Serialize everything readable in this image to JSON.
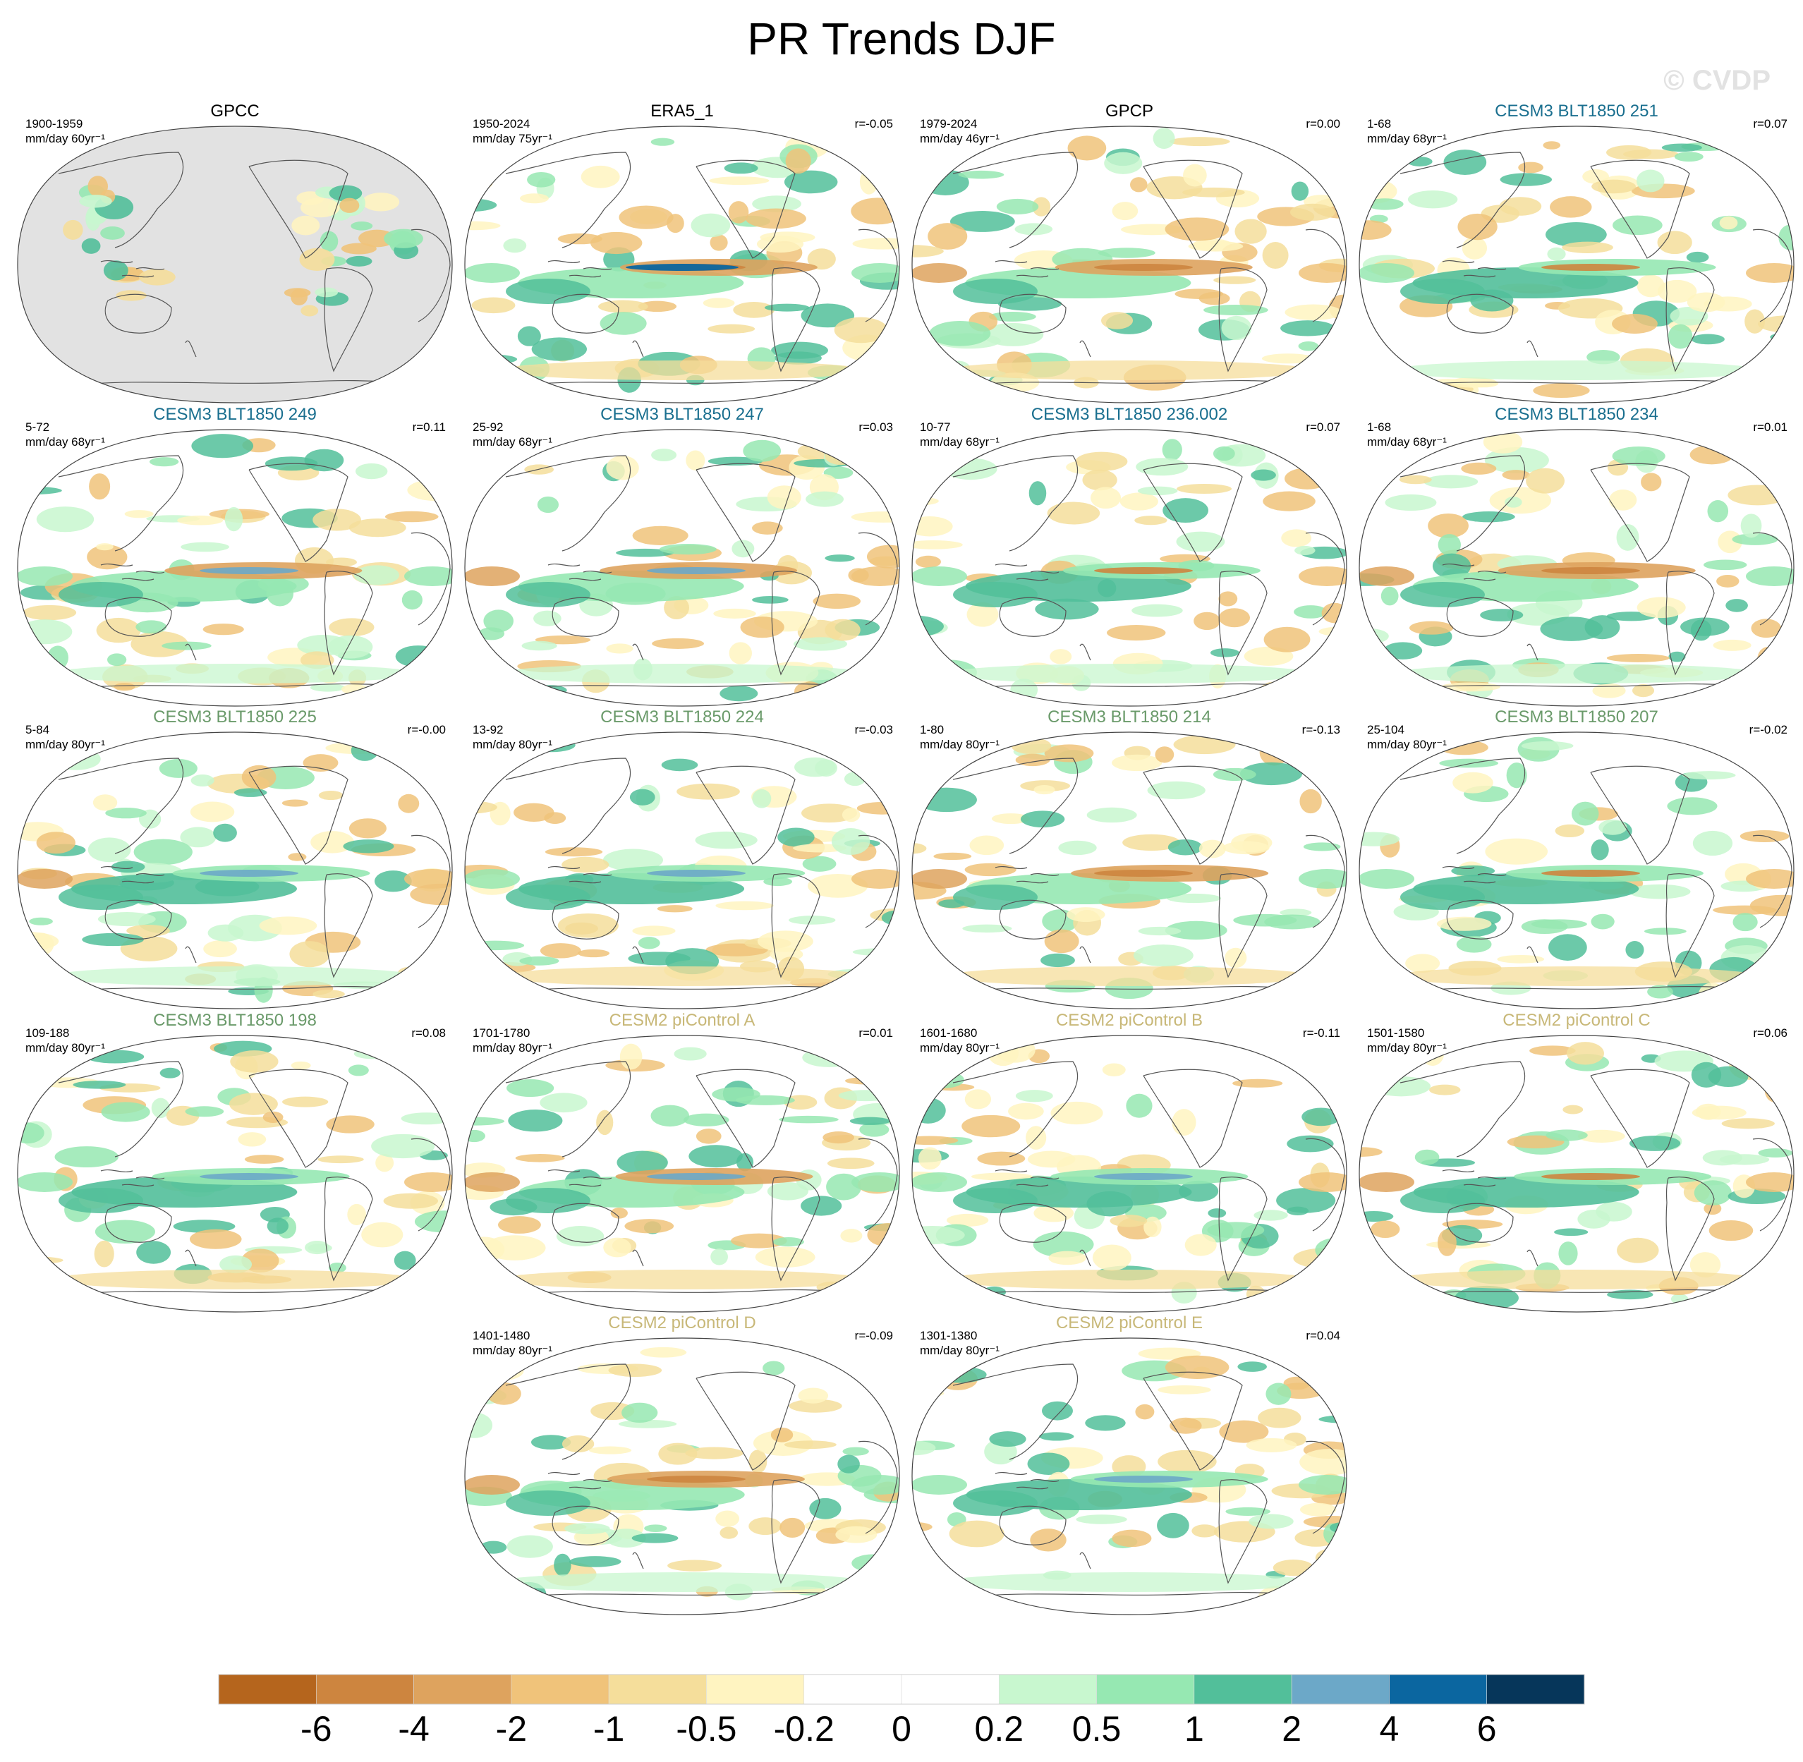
{
  "title": "PR Trends DJF",
  "watermark": "© CVDP",
  "colors": {
    "title_obs": "#000000",
    "title_blt_blue": "#1a6f8f",
    "title_blt_green": "#6a9a6a",
    "title_pic": "#c8b878",
    "land_missing": "#e2e2e2",
    "coast": "#555555"
  },
  "panels": [
    {
      "title": "GPCC",
      "group": "obs",
      "period": "1900-1959",
      "units": "mm/day 60yr⁻¹",
      "r": ""
    },
    {
      "title": "ERA5_1",
      "group": "obs",
      "period": "1950-2024",
      "units": "mm/day 75yr⁻¹",
      "r": "r=-0.05"
    },
    {
      "title": "GPCP",
      "group": "obs",
      "period": "1979-2024",
      "units": "mm/day 46yr⁻¹",
      "r": "r=0.00"
    },
    {
      "title": "CESM3 BLT1850 251",
      "group": "blt_blue",
      "period": "1-68",
      "units": "mm/day 68yr⁻¹",
      "r": "r=0.07"
    },
    {
      "title": "CESM3 BLT1850 249",
      "group": "blt_blue",
      "period": "5-72",
      "units": "mm/day 68yr⁻¹",
      "r": "r=0.11"
    },
    {
      "title": "CESM3 BLT1850 247",
      "group": "blt_blue",
      "period": "25-92",
      "units": "mm/day 68yr⁻¹",
      "r": "r=0.03"
    },
    {
      "title": "CESM3 BLT1850 236.002",
      "group": "blt_blue",
      "period": "10-77",
      "units": "mm/day 68yr⁻¹",
      "r": "r=0.07"
    },
    {
      "title": "CESM3 BLT1850 234",
      "group": "blt_blue",
      "period": "1-68",
      "units": "mm/day 68yr⁻¹",
      "r": "r=0.01"
    },
    {
      "title": "CESM3 BLT1850 225",
      "group": "blt_green",
      "period": "5-84",
      "units": "mm/day 80yr⁻¹",
      "r": "r=-0.00"
    },
    {
      "title": "CESM3 BLT1850 224",
      "group": "blt_green",
      "period": "13-92",
      "units": "mm/day 80yr⁻¹",
      "r": "r=-0.03"
    },
    {
      "title": "CESM3 BLT1850 214",
      "group": "blt_green",
      "period": "1-80",
      "units": "mm/day 80yr⁻¹",
      "r": "r=-0.13"
    },
    {
      "title": "CESM3 BLT1850 207",
      "group": "blt_green",
      "period": "25-104",
      "units": "mm/day 80yr⁻¹",
      "r": "r=-0.02"
    },
    {
      "title": "CESM3 BLT1850 198",
      "group": "blt_green",
      "period": "109-188",
      "units": "mm/day 80yr⁻¹",
      "r": "r=0.08"
    },
    {
      "title": "CESM2 piControl A",
      "group": "pic",
      "period": "1701-1780",
      "units": "mm/day 80yr⁻¹",
      "r": "r=0.01"
    },
    {
      "title": "CESM2 piControl B",
      "group": "pic",
      "period": "1601-1680",
      "units": "mm/day 80yr⁻¹",
      "r": "r=-0.11"
    },
    {
      "title": "CESM2 piControl C",
      "group": "pic",
      "period": "1501-1580",
      "units": "mm/day 80yr⁻¹",
      "r": "r=0.06"
    },
    {
      "title": "CESM2 piControl D",
      "group": "pic",
      "period": "1401-1480",
      "units": "mm/day 80yr⁻¹",
      "r": "r=-0.09"
    },
    {
      "title": "CESM2 piControl E",
      "group": "pic",
      "period": "1301-1380",
      "units": "mm/day 80yr⁻¹",
      "r": "r=0.04"
    }
  ],
  "chart_data": {
    "type": "heatmap",
    "title": "PR Trends DJF",
    "projection": "robinson-like, Pacific-centered",
    "colorbar": {
      "levels": [
        "-6",
        "-4",
        "-2",
        "-1",
        "-0.5",
        "-0.2",
        "0",
        "0.2",
        "0.5",
        "1",
        "2",
        "4",
        "6"
      ],
      "colors": [
        "#b5651d",
        "#cd853f",
        "#dea35e",
        "#f0c37a",
        "#f5de9b",
        "#fff4c1",
        "#ffffff",
        "#ffffff",
        "#c8f7cf",
        "#96e8b2",
        "#52bf9a",
        "#6ca8c8",
        "#0b66a0",
        "#06365a"
      ]
    }
  }
}
